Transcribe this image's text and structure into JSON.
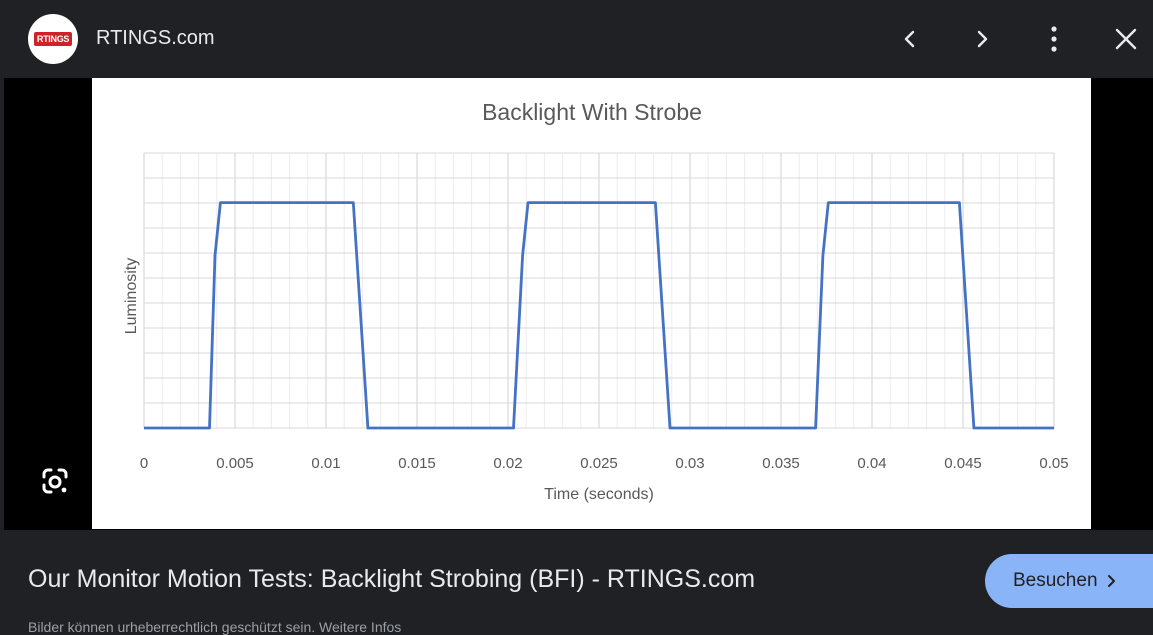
{
  "header": {
    "logo_text": "RTINGS",
    "site_name": "RTINGS.com",
    "icons": [
      "chevron-left-icon",
      "chevron-right-icon",
      "more-vert-icon",
      "close-icon"
    ]
  },
  "lens": {
    "icon": "google-lens-icon"
  },
  "chart_data": {
    "type": "line",
    "title": "Backlight With Strobe",
    "xlabel": "Time (seconds)",
    "ylabel": "Luminosity",
    "xlim": [
      0,
      0.05
    ],
    "xticks": [
      "0",
      "0.005",
      "0.01",
      "0.015",
      "0.02",
      "0.025",
      "0.03",
      "0.035",
      "0.04",
      "0.045",
      "0.05"
    ],
    "ylim": [
      0,
      1
    ],
    "grid": true,
    "series": [
      {
        "color": "#4472c4",
        "x": [
          0,
          0.0036,
          0.0039,
          0.0042,
          0.0115,
          0.0123,
          0.0203,
          0.0208,
          0.0211,
          0.0281,
          0.0289,
          0.0369,
          0.0373,
          0.0376,
          0.0448,
          0.0456,
          0.05
        ],
        "y": [
          0,
          0,
          0.75,
          0.98,
          0.98,
          0,
          0,
          0.75,
          0.98,
          0.98,
          0,
          0,
          0.75,
          0.98,
          0.98,
          0,
          0
        ]
      }
    ]
  },
  "footer": {
    "title": "Our Monitor Motion Tests: Backlight Strobing (BFI) - RTINGS.com",
    "visit_label": "Besuchen",
    "caption": "Bilder können urheberrechtlich geschützt sein. Weitere Infos"
  }
}
